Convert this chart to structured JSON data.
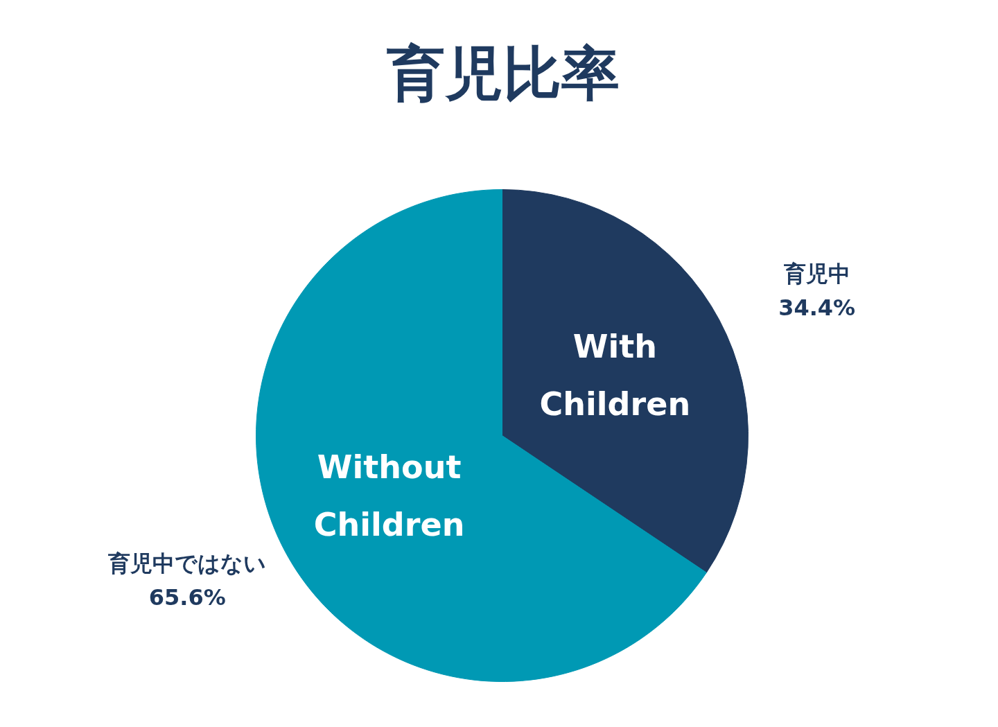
{
  "chart_data": {
    "type": "pie",
    "title": "育児比率",
    "categories": [
      "育児中",
      "育児中ではない"
    ],
    "values": [
      34.4,
      65.6
    ],
    "value_labels": [
      "34.4%",
      "65.6%"
    ],
    "colors": [
      "#1f3a5f",
      "#0099b4"
    ],
    "annotations": [
      "With\nChildren",
      "Without\nChildren"
    ]
  }
}
